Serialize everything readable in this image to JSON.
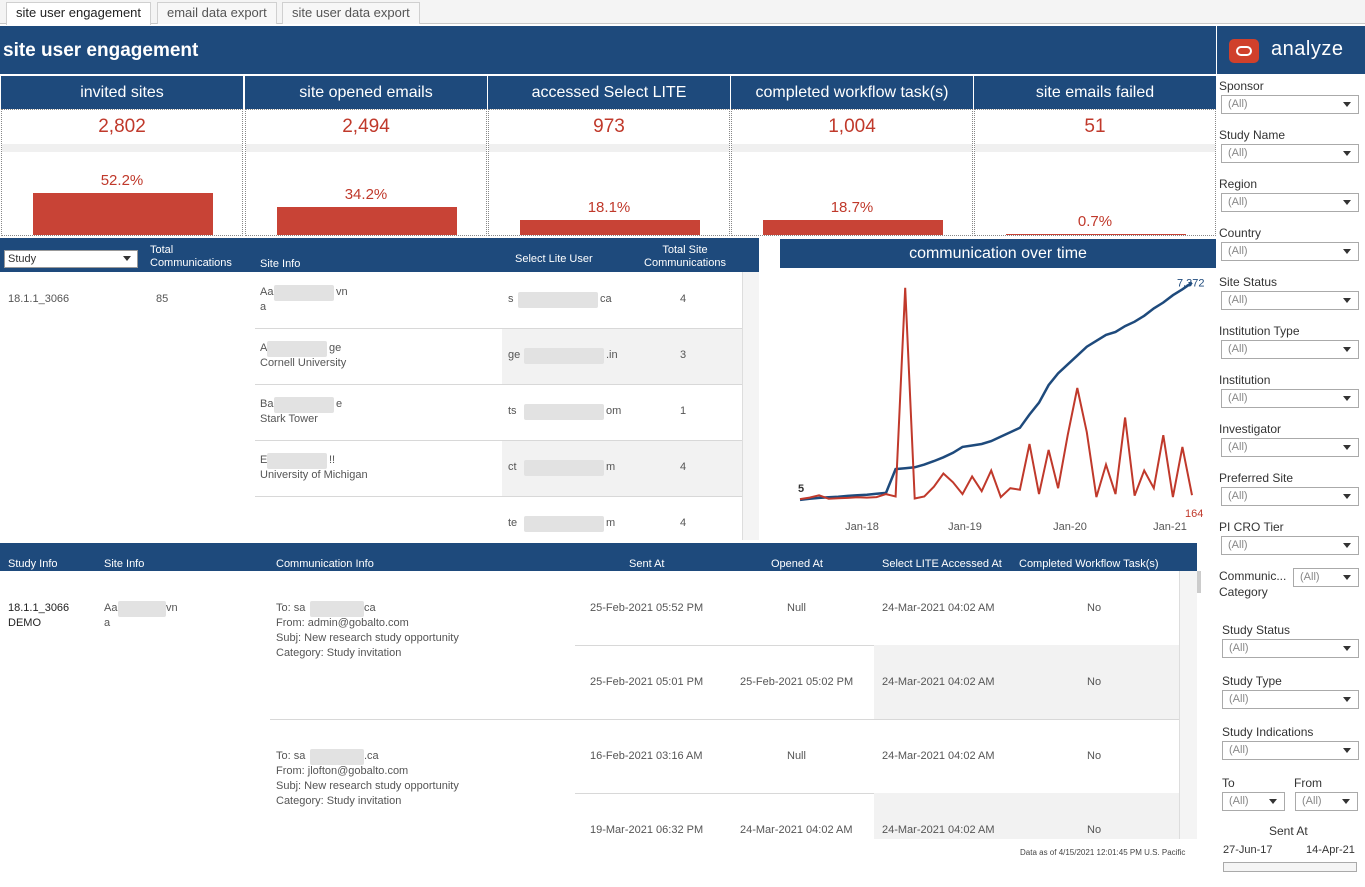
{
  "tabs": [
    {
      "label": "site user engagement",
      "active": true
    },
    {
      "label": "email data export",
      "active": false
    },
    {
      "label": "site user data export",
      "active": false
    }
  ],
  "header": {
    "title": "site user engagement",
    "logo_text": "analyze"
  },
  "kpis": [
    {
      "label": "invited sites",
      "value": "2,802",
      "pct_label": "52.2%",
      "pct": 52.2
    },
    {
      "label": "site opened emails",
      "value": "2,494",
      "pct_label": "34.2%",
      "pct": 34.2
    },
    {
      "label": "accessed Select  LITE",
      "value": "973",
      "pct_label": "18.1%",
      "pct": 18.1
    },
    {
      "label": "completed workflow task(s)",
      "value": "1,004",
      "pct_label": "18.7%",
      "pct": 18.7
    },
    {
      "label": "site emails failed",
      "value": "51",
      "pct_label": "0.7%",
      "pct": 0.7
    }
  ],
  "site_table": {
    "study_select": "Study",
    "headers": {
      "total_comm": "Total\nCommunications",
      "site_info": "Site Info",
      "lite_user": "Select Lite User",
      "total_site": "Total Site\nCommunications"
    },
    "study": "18.1.1_3066",
    "total": "85",
    "rows": [
      {
        "site_a": "Aa",
        "site_b": "vn",
        "site_c": "a",
        "user_a": "s",
        "user_b": "ca",
        "count": "4"
      },
      {
        "site_a": "A",
        "site_b": "ge",
        "site_c": "Cornell University",
        "user_a": "ge",
        "user_b": ".in",
        "count": "3"
      },
      {
        "site_a": "Ba",
        "site_b": "e",
        "site_c": "Stark Tower",
        "user_a": "ts",
        "user_b": "om",
        "count": "1"
      },
      {
        "site_a": "E",
        "site_b": "!!",
        "site_c": "University of Michigan",
        "user_a": "ct",
        "user_b": "m",
        "count": "4"
      },
      {
        "site_a": "",
        "site_b": "",
        "site_c": "",
        "user_a": "te",
        "user_b": "m",
        "count": "4"
      }
    ]
  },
  "chart_data": {
    "type": "line",
    "title": "communication over time",
    "x_ticks": [
      "Jan-18",
      "Jan-19",
      "Jan-20",
      "Jan-21"
    ],
    "series": [
      {
        "color": "#1e4a7c",
        "start_label": "5",
        "end_label": "7,372",
        "values": [
          5,
          40,
          70,
          90,
          110,
          140,
          160,
          180,
          210,
          240,
          1050,
          1080,
          1110,
          1200,
          1320,
          1450,
          1600,
          1800,
          1850,
          1900,
          2000,
          2150,
          2300,
          2450,
          2900,
          3300,
          3900,
          4300,
          4600,
          4900,
          5200,
          5400,
          5600,
          5700,
          5900,
          6050,
          6250,
          6500,
          6700,
          6950,
          7150,
          7372
        ]
      },
      {
        "color": "#c0392b",
        "start_label": "",
        "end_label": "164",
        "values": [
          30,
          80,
          160,
          40,
          60,
          70,
          90,
          80,
          100,
          200,
          120,
          7200,
          50,
          120,
          450,
          900,
          600,
          200,
          800,
          300,
          1000,
          100,
          400,
          350,
          1900,
          200,
          1700,
          400,
          2200,
          3800,
          2300,
          100,
          1200,
          200,
          2800,
          150,
          1000,
          400,
          2200,
          100,
          1800,
          164
        ]
      }
    ],
    "ylim": [
      0,
      7600
    ]
  },
  "comm_table": {
    "headers": {
      "study": "Study Info",
      "site": "Site Info",
      "comm": "Communication Info",
      "sent": "Sent At",
      "opened": "Opened At",
      "lite": "Select LITE Accessed At",
      "workflow": "Completed Workflow Task(s)"
    },
    "study": "18.1.1_3066",
    "study_sub": "DEMO",
    "site_a": "Aa",
    "site_b": "vn",
    "site_c": "a",
    "groups": [
      {
        "to_a": "To: sa",
        "to_b": "ca",
        "from": "From: admin@gobalto.com",
        "subj": "Subj: New research study opportunity",
        "cat": "Category: Study invitation",
        "rows": [
          {
            "sent": "25-Feb-2021 05:52 PM",
            "opened": "Null",
            "lite": "24-Mar-2021 04:02 AM",
            "wf": "No"
          },
          {
            "sent": "25-Feb-2021 05:01 PM",
            "opened": "25-Feb-2021 05:02 PM",
            "lite": "24-Mar-2021 04:02 AM",
            "wf": "No"
          }
        ]
      },
      {
        "to_a": "To: sa",
        "to_b": ".ca",
        "from": "From: jlofton@gobalto.com",
        "subj": "Subj: New research study opportunity",
        "cat": "Category: Study invitation",
        "rows": [
          {
            "sent": "16-Feb-2021 03:16 AM",
            "opened": "Null",
            "lite": "24-Mar-2021 04:02 AM",
            "wf": "No"
          },
          {
            "sent": "19-Mar-2021 06:32 PM",
            "opened": "24-Mar-2021 04:02 AM",
            "lite": "24-Mar-2021 04:02 AM",
            "wf": "No"
          }
        ]
      }
    ]
  },
  "footer": {
    "data_asof": "Data as of 4/15/2021 12:01:45 PM U.S. Pacific"
  },
  "filters": [
    {
      "label": "Sponsor",
      "value": "(All)"
    },
    {
      "label": "Study Name",
      "value": "(All)"
    },
    {
      "label": "Region",
      "value": "(All)"
    },
    {
      "label": "Country",
      "value": "(All)"
    },
    {
      "label": "Site Status",
      "value": "(All)"
    },
    {
      "label": "Institution Type",
      "value": "(All)"
    },
    {
      "label": "Institution",
      "value": "(All)"
    },
    {
      "label": "Investigator",
      "value": "(All)"
    },
    {
      "label": "Preferred Site",
      "value": "(All)"
    },
    {
      "label": "PI CRO Tier",
      "value": "(All)"
    }
  ],
  "comm_category": {
    "label_a": "Communic...",
    "label_b": "Category",
    "value": "(All)"
  },
  "filters2": [
    {
      "label": "Study Status",
      "value": "(All)"
    },
    {
      "label": "Study Type",
      "value": "(All)"
    },
    {
      "label": "Study Indications",
      "value": "(All)"
    }
  ],
  "to_from": {
    "to_label": "To",
    "to_value": "(All)",
    "from_label": "From",
    "from_value": "(All)"
  },
  "sent_at": {
    "label": "Sent At",
    "start": "27-Jun-17",
    "end": "14-Apr-21"
  }
}
